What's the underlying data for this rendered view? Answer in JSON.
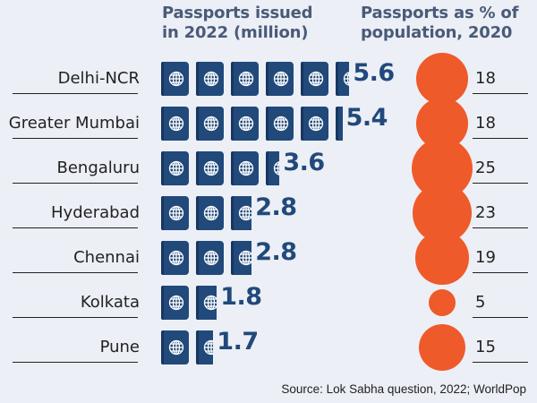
{
  "headers": {
    "left": "Passports issued\nin 2022 (million)",
    "right": "Passports as % of\npopulation, 2020"
  },
  "source": "Source: Lok Sabha question, 2022; WorldPop",
  "colors": {
    "passport": "#21497a",
    "circle": "#ef5a2a",
    "heading": "#4a5b78",
    "background": "#eceff6"
  },
  "icon": "globe-icon",
  "chart_data": {
    "type": "bar",
    "categories": [
      "Delhi-NCR",
      "Greater Mumbai",
      "Bengaluru",
      "Hyderabad",
      "Chennai",
      "Kolkata",
      "Pune"
    ],
    "series": [
      {
        "name": "Passports issued in 2022 (million)",
        "values": [
          5.6,
          5.4,
          3.6,
          2.8,
          2.8,
          1.8,
          1.7
        ],
        "labels": [
          "5.6",
          "5.4",
          "3.6",
          "2.8",
          "2.8",
          "1.8",
          "1.7"
        ]
      },
      {
        "name": "Passports as % of population, 2020",
        "values": [
          18,
          18,
          25,
          23,
          19,
          5,
          15
        ],
        "labels": [
          "18",
          "18",
          "25",
          "23",
          "19",
          "5",
          "15"
        ]
      }
    ]
  }
}
